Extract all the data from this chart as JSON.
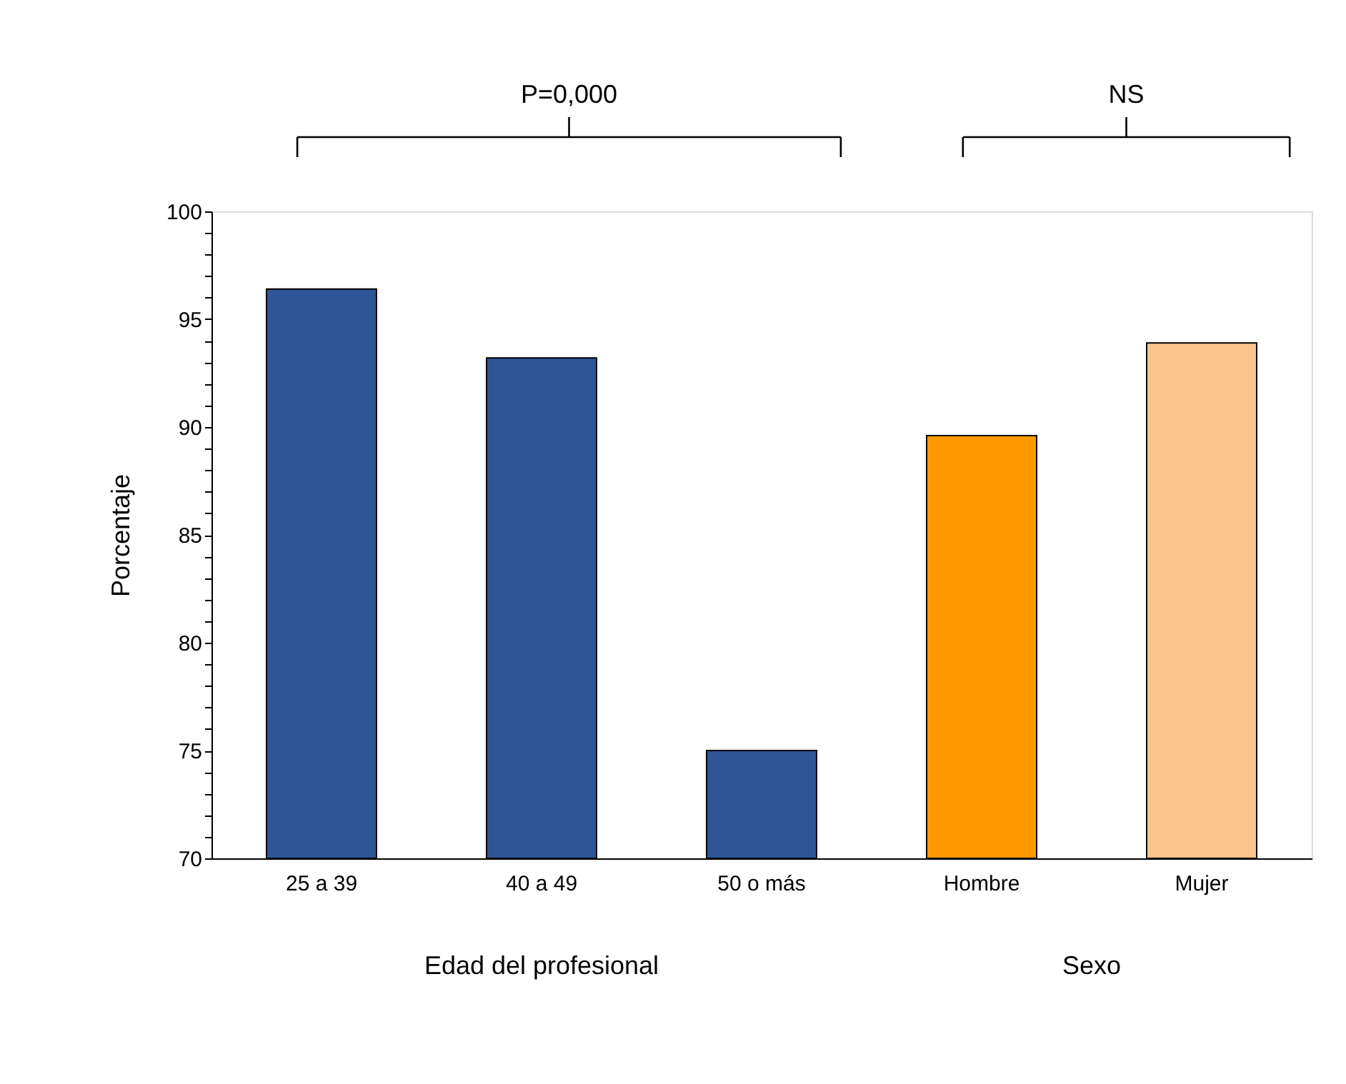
{
  "chart_data": {
    "type": "bar",
    "ylabel": "Porcentaje",
    "categories": [
      "25 a 39",
      "40 a 49",
      "50 o más",
      "Hombre",
      "Mujer"
    ],
    "values": [
      96.4,
      93.2,
      75.0,
      89.6,
      93.9
    ],
    "colors": [
      "#2f5597",
      "#2f5597",
      "#2f5597",
      "#ff9900",
      "#fbc48a"
    ],
    "ylim": [
      70,
      100
    ],
    "yticks": [
      70,
      {
        "value": 71,
        "label": null
      },
      {
        "value": 72,
        "label": null
      },
      {
        "value": 73,
        "label": null
      },
      {
        "value": 74,
        "label": null
      },
      75,
      {
        "value": 76,
        "label": null
      },
      {
        "value": 77,
        "label": null
      },
      {
        "value": 78,
        "label": null
      },
      {
        "value": 79,
        "label": null
      },
      80,
      {
        "value": 81,
        "label": null
      },
      {
        "value": 82,
        "label": null
      },
      {
        "value": 83,
        "label": null
      },
      {
        "value": 84,
        "label": null
      },
      85,
      {
        "value": 86,
        "label": null
      },
      {
        "value": 87,
        "label": null
      },
      {
        "value": 88,
        "label": null
      },
      {
        "value": 89,
        "label": null
      },
      90,
      {
        "value": 91,
        "label": null
      },
      {
        "value": 92,
        "label": null
      },
      {
        "value": 93,
        "label": null
      },
      {
        "value": 94,
        "label": null
      },
      95,
      {
        "value": 96,
        "label": null
      },
      {
        "value": 97,
        "label": null
      },
      {
        "value": 98,
        "label": null
      },
      {
        "value": 99,
        "label": null
      },
      100
    ],
    "annotations": [
      "P=0,000",
      "NS",
      "Edad del profesional",
      "Sexo"
    ],
    "grid": false
  }
}
